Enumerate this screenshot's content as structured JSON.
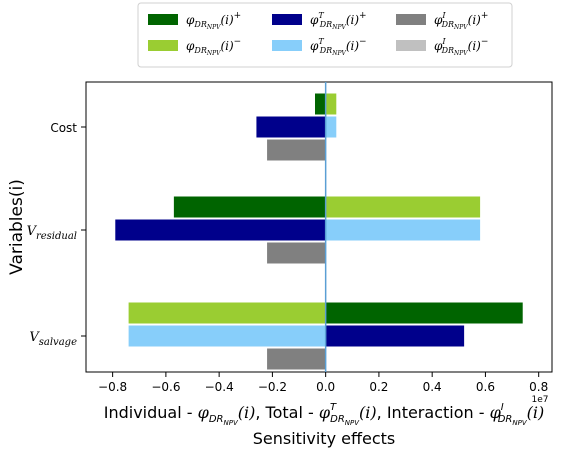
{
  "chart_data": {
    "type": "bar",
    "orientation": "horizontal",
    "categories": [
      "Cost",
      "V_residual",
      "V_salvage"
    ],
    "category_display": [
      {
        "main": "Cost",
        "sub": ""
      },
      {
        "main": "V",
        "sub": "residual"
      },
      {
        "main": "V",
        "sub": "salvage"
      }
    ],
    "series": [
      {
        "key": "indiv_pos",
        "color": "#006400",
        "values": [
          -0.04,
          -0.57,
          0.74
        ],
        "legend": {
          "main": "φ",
          "sub": "DR",
          "subsub": "NPV",
          "sup": "",
          "tail": "(i)",
          "tailsup": "+"
        }
      },
      {
        "key": "indiv_neg",
        "color": "#9acd32",
        "values": [
          0.04,
          0.58,
          -0.74
        ],
        "legend": {
          "main": "φ",
          "sub": "DR",
          "subsub": "NPV",
          "sup": "",
          "tail": "(i)",
          "tailsup": "−"
        }
      },
      {
        "key": "total_pos",
        "color": "#00008b",
        "values": [
          -0.26,
          -0.79,
          0.52
        ],
        "legend": {
          "main": "φ",
          "sub": "DR",
          "subsub": "NPV",
          "sup": "T",
          "tail": "(i)",
          "tailsup": "+"
        }
      },
      {
        "key": "total_neg",
        "color": "#87cefa",
        "values": [
          0.04,
          0.58,
          -0.74
        ],
        "legend": {
          "main": "φ",
          "sub": "DR",
          "subsub": "NPV",
          "sup": "T",
          "tail": "(i)",
          "tailsup": "−"
        }
      },
      {
        "key": "inter_pos",
        "color": "#808080",
        "values": [
          -0.22,
          -0.22,
          -0.22
        ],
        "legend": {
          "main": "φ",
          "sub": "DR",
          "subsub": "NPV",
          "sup": "I",
          "tail": "(i)",
          "tailsup": "+"
        }
      },
      {
        "key": "inter_neg",
        "color": "#c0c0c0",
        "values": [
          0,
          0,
          0
        ],
        "legend": {
          "main": "φ",
          "sub": "DR",
          "subsub": "NPV",
          "sup": "I",
          "tail": "(i)",
          "tailsup": "−"
        }
      }
    ],
    "rows": [
      [
        "indiv_pos",
        "indiv_neg"
      ],
      [
        "total_pos",
        "total_neg"
      ],
      [
        "inter_pos",
        "inter_neg"
      ]
    ],
    "xlim": [
      -0.9,
      0.85
    ],
    "xticks": [
      -0.8,
      -0.6,
      -0.4,
      -0.2,
      0.0,
      0.2,
      0.4,
      0.6,
      0.8
    ],
    "xtick_labels": [
      "−0.8",
      "−0.6",
      "−0.4",
      "−0.2",
      "0.0",
      "0.2",
      "0.4",
      "0.6",
      "0.8"
    ],
    "offset_label": "1e7",
    "ylabel": "Variables(i)",
    "xlabel_line1": "Individual - φDRNPV(i), Total - φTDRNPV(i), Interaction - φIDRNPV(i)",
    "xlabel_line2": "Sensitivity effects",
    "zero_line_color": "#5a9fd4",
    "legend_placement": "top-center"
  }
}
